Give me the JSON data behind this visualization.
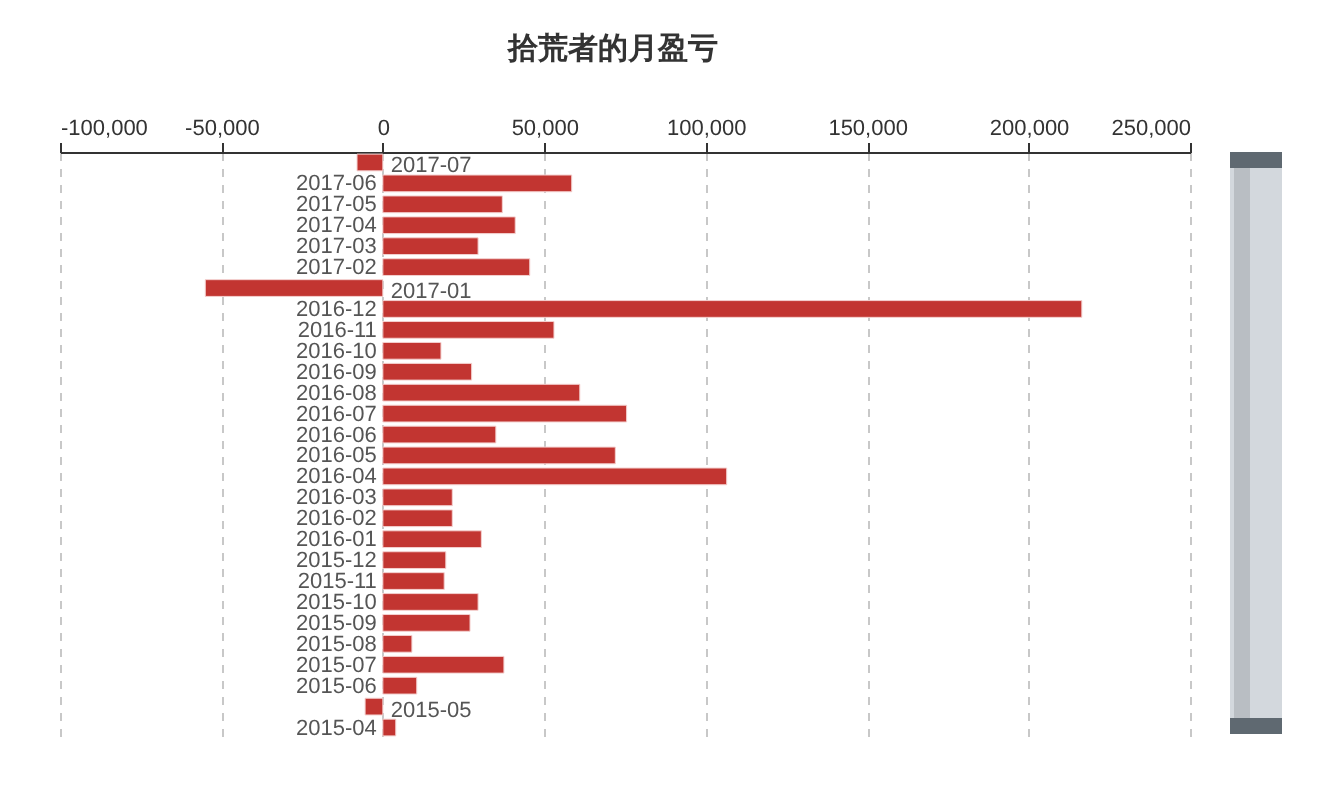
{
  "chart_data": {
    "type": "bar",
    "orientation": "horizontal",
    "title": "拾荒者的月盈亏",
    "categories": [
      "2017-07",
      "2017-06",
      "2017-05",
      "2017-04",
      "2017-03",
      "2017-02",
      "2017-01",
      "2016-12",
      "2016-11",
      "2016-10",
      "2016-09",
      "2016-08",
      "2016-07",
      "2016-06",
      "2016-05",
      "2016-04",
      "2016-03",
      "2016-02",
      "2016-01",
      "2015-12",
      "2015-11",
      "2015-10",
      "2015-09",
      "2015-08",
      "2015-07",
      "2015-06",
      "2015-05",
      "2015-04"
    ],
    "values": [
      -8000,
      58500,
      37000,
      41000,
      29500,
      45500,
      -55000,
      216500,
      53000,
      18000,
      27500,
      61000,
      75500,
      35000,
      72000,
      106500,
      21500,
      21500,
      30500,
      19500,
      19000,
      29500,
      27000,
      9000,
      37500,
      10500,
      -5500,
      4000
    ],
    "color": "#c23531",
    "xlim": [
      -100000,
      250000
    ],
    "xticks": [
      {
        "value": -100000,
        "label": "-100,000"
      },
      {
        "value": -50000,
        "label": "-50,000"
      },
      0,
      {
        "value": 50000,
        "label": "50,000"
      },
      {
        "value": 100000,
        "label": "100,000"
      },
      {
        "value": 150000,
        "label": "150,000"
      },
      {
        "value": 200000,
        "label": "200,000"
      },
      {
        "value": 250000,
        "label": "250,000"
      }
    ],
    "grid": "x"
  }
}
